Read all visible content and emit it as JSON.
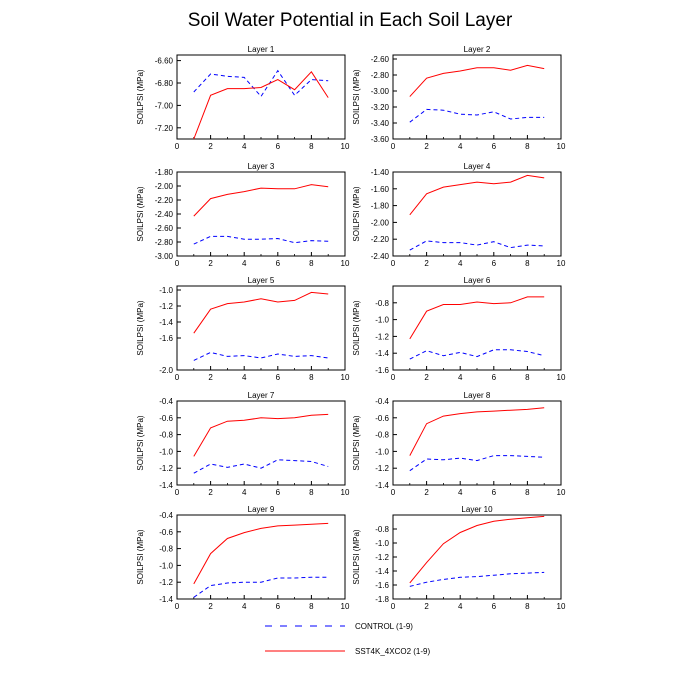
{
  "title": "Soil Water Potential in Each Soil Layer",
  "legend": [
    {
      "label": "CONTROL (1-9)",
      "color": "#0000ff",
      "style": "dashed"
    },
    {
      "label": "SST4K_4XCO2 (1-9)",
      "color": "#ff0000",
      "style": "solid"
    }
  ],
  "chart_data": [
    {
      "type": "line",
      "title": "Layer 1",
      "ylabel": "SOILPSI  (MPa)",
      "xlim": [
        0,
        10
      ],
      "ylim": [
        -7.3,
        -6.55
      ],
      "xticks": [
        0,
        2,
        4,
        6,
        8,
        10
      ],
      "yticks": [
        -7.2,
        -7.0,
        -6.8,
        -6.6
      ],
      "ytick_labels": [
        "-7.20",
        "-7.00",
        "-6.80",
        "-6.60"
      ],
      "x": [
        1,
        2,
        3,
        4,
        5,
        6,
        7,
        8,
        9
      ],
      "series": [
        {
          "name": "CONTROL (1-9)",
          "values": [
            -6.88,
            -6.72,
            -6.74,
            -6.75,
            -6.92,
            -6.69,
            -6.91,
            -6.77,
            -6.78
          ]
        },
        {
          "name": "SST4K_4XCO2 (1-9)",
          "values": [
            -7.3,
            -6.91,
            -6.85,
            -6.85,
            -6.84,
            -6.77,
            -6.86,
            -6.7,
            -6.93
          ]
        }
      ]
    },
    {
      "type": "line",
      "title": "Layer 2",
      "ylabel": "SOILPSI  (MPa)",
      "xlim": [
        0,
        10
      ],
      "ylim": [
        -3.6,
        -2.55
      ],
      "xticks": [
        0,
        2,
        4,
        6,
        8,
        10
      ],
      "yticks": [
        -3.6,
        -3.4,
        -3.2,
        -3.0,
        -2.8,
        -2.6
      ],
      "ytick_labels": [
        "-3.60",
        "-3.40",
        "-3.20",
        "-3.00",
        "-2.80",
        "-2.60"
      ],
      "x": [
        1,
        2,
        3,
        4,
        5,
        6,
        7,
        8,
        9
      ],
      "series": [
        {
          "name": "CONTROL (1-9)",
          "values": [
            -3.39,
            -3.23,
            -3.24,
            -3.29,
            -3.3,
            -3.26,
            -3.35,
            -3.33,
            -3.33
          ]
        },
        {
          "name": "SST4K_4XCO2 (1-9)",
          "values": [
            -3.07,
            -2.84,
            -2.78,
            -2.75,
            -2.71,
            -2.71,
            -2.74,
            -2.68,
            -2.72
          ]
        }
      ]
    },
    {
      "type": "line",
      "title": "Layer 3",
      "ylabel": "SOILPSI  (MPa)",
      "xlim": [
        0,
        10
      ],
      "ylim": [
        -3.0,
        -1.8
      ],
      "xticks": [
        0,
        2,
        4,
        6,
        8,
        10
      ],
      "yticks": [
        -3.0,
        -2.8,
        -2.6,
        -2.4,
        -2.2,
        -2.0,
        -1.8
      ],
      "ytick_labels": [
        "-3.00",
        "-2.80",
        "-2.60",
        "-2.40",
        "-2.20",
        "-2.00",
        "-1.80"
      ],
      "x": [
        1,
        2,
        3,
        4,
        5,
        6,
        7,
        8,
        9
      ],
      "series": [
        {
          "name": "CONTROL (1-9)",
          "values": [
            -2.83,
            -2.72,
            -2.72,
            -2.76,
            -2.76,
            -2.75,
            -2.81,
            -2.78,
            -2.79
          ]
        },
        {
          "name": "SST4K_4XCO2 (1-9)",
          "values": [
            -2.43,
            -2.18,
            -2.12,
            -2.08,
            -2.03,
            -2.04,
            -2.04,
            -1.98,
            -2.01
          ]
        }
      ]
    },
    {
      "type": "line",
      "title": "Layer 4",
      "ylabel": "SOILPSI  (MPa)",
      "xlim": [
        0,
        10
      ],
      "ylim": [
        -2.4,
        -1.4
      ],
      "xticks": [
        0,
        2,
        4,
        6,
        8,
        10
      ],
      "yticks": [
        -2.4,
        -2.2,
        -2.0,
        -1.8,
        -1.6,
        -1.4
      ],
      "ytick_labels": [
        "-2.40",
        "-2.20",
        "-2.00",
        "-1.80",
        "-1.60",
        "-1.40"
      ],
      "x": [
        1,
        2,
        3,
        4,
        5,
        6,
        7,
        8,
        9
      ],
      "series": [
        {
          "name": "CONTROL (1-9)",
          "values": [
            -2.33,
            -2.22,
            -2.24,
            -2.24,
            -2.27,
            -2.23,
            -2.3,
            -2.27,
            -2.28
          ]
        },
        {
          "name": "SST4K_4XCO2 (1-9)",
          "values": [
            -1.91,
            -1.66,
            -1.58,
            -1.55,
            -1.52,
            -1.54,
            -1.52,
            -1.44,
            -1.47
          ]
        }
      ]
    },
    {
      "type": "line",
      "title": "Layer 5",
      "ylabel": "SOILPSI  (MPa)",
      "xlim": [
        0,
        10
      ],
      "ylim": [
        -2.0,
        -0.95
      ],
      "xticks": [
        0,
        2,
        4,
        6,
        8,
        10
      ],
      "yticks": [
        -2.0,
        -1.6,
        -1.4,
        -1.2,
        -1.0
      ],
      "ytick_labels": [
        "-2.0",
        "-1.6",
        "-1.4",
        "-1.2",
        "-1.0"
      ],
      "x": [
        1,
        2,
        3,
        4,
        5,
        6,
        7,
        8,
        9
      ],
      "series": [
        {
          "name": "CONTROL (1-9)",
          "values": [
            -1.88,
            -1.78,
            -1.83,
            -1.82,
            -1.85,
            -1.8,
            -1.83,
            -1.82,
            -1.85
          ]
        },
        {
          "name": "SST4K_4XCO2 (1-9)",
          "values": [
            -1.54,
            -1.24,
            -1.17,
            -1.15,
            -1.11,
            -1.15,
            -1.13,
            -1.03,
            -1.05
          ]
        }
      ]
    },
    {
      "type": "line",
      "title": "Layer 6",
      "ylabel": "SOILPSI  (MPa)",
      "xlim": [
        0,
        10
      ],
      "ylim": [
        -1.6,
        -0.6
      ],
      "xticks": [
        0,
        2,
        4,
        6,
        8,
        10
      ],
      "yticks": [
        -1.6,
        -1.4,
        -1.2,
        -1.0,
        -0.8
      ],
      "ytick_labels": [
        "-1.6",
        "-1.4",
        "-1.2",
        "-1.0",
        "-0.8"
      ],
      "x": [
        1,
        2,
        3,
        4,
        5,
        6,
        7,
        8,
        9
      ],
      "series": [
        {
          "name": "CONTROL (1-9)",
          "values": [
            -1.47,
            -1.37,
            -1.43,
            -1.39,
            -1.44,
            -1.36,
            -1.36,
            -1.38,
            -1.43
          ]
        },
        {
          "name": "SST4K_4XCO2 (1-9)",
          "values": [
            -1.23,
            -0.9,
            -0.82,
            -0.82,
            -0.79,
            -0.81,
            -0.8,
            -0.73,
            -0.73
          ]
        }
      ]
    },
    {
      "type": "line",
      "title": "Layer 7",
      "ylabel": "SOILPSI  (MPa)",
      "xlim": [
        0,
        10
      ],
      "ylim": [
        -1.4,
        -0.4
      ],
      "xticks": [
        0,
        2,
        4,
        6,
        8,
        10
      ],
      "yticks": [
        -1.4,
        -1.2,
        -1.0,
        -0.8,
        -0.6,
        -0.4
      ],
      "ytick_labels": [
        "-1.4",
        "-1.2",
        "-1.0",
        "-0.8",
        "-0.6",
        "-0.4"
      ],
      "x": [
        1,
        2,
        3,
        4,
        5,
        6,
        7,
        8,
        9
      ],
      "series": [
        {
          "name": "CONTROL (1-9)",
          "values": [
            -1.26,
            -1.15,
            -1.19,
            -1.15,
            -1.2,
            -1.1,
            -1.11,
            -1.12,
            -1.18
          ]
        },
        {
          "name": "SST4K_4XCO2 (1-9)",
          "values": [
            -1.06,
            -0.72,
            -0.64,
            -0.63,
            -0.6,
            -0.61,
            -0.6,
            -0.57,
            -0.56
          ]
        }
      ]
    },
    {
      "type": "line",
      "title": "Layer 8",
      "ylabel": "SOILPSI  (MPa)",
      "xlim": [
        0,
        10
      ],
      "ylim": [
        -1.4,
        -0.4
      ],
      "xticks": [
        0,
        2,
        4,
        6,
        8,
        10
      ],
      "yticks": [
        -1.4,
        -1.2,
        -1.0,
        -0.8,
        -0.6,
        -0.4
      ],
      "ytick_labels": [
        "-1.4",
        "-1.2",
        "-1.0",
        "-0.8",
        "-0.6",
        "-0.4"
      ],
      "x": [
        1,
        2,
        3,
        4,
        5,
        6,
        7,
        8,
        9
      ],
      "series": [
        {
          "name": "CONTROL (1-9)",
          "values": [
            -1.23,
            -1.09,
            -1.1,
            -1.08,
            -1.11,
            -1.05,
            -1.05,
            -1.06,
            -1.07
          ]
        },
        {
          "name": "SST4K_4XCO2 (1-9)",
          "values": [
            -1.05,
            -0.67,
            -0.58,
            -0.55,
            -0.53,
            -0.52,
            -0.51,
            -0.5,
            -0.48
          ]
        }
      ]
    },
    {
      "type": "line",
      "title": "Layer 9",
      "ylabel": "SOILPSI  (MPa)",
      "xlim": [
        0,
        10
      ],
      "ylim": [
        -1.4,
        -0.4
      ],
      "xticks": [
        0,
        2,
        4,
        6,
        8,
        10
      ],
      "yticks": [
        -1.4,
        -1.2,
        -1.0,
        -0.8,
        -0.6,
        -0.4
      ],
      "ytick_labels": [
        "-1.4",
        "-1.2",
        "-1.0",
        "-0.8",
        "-0.6",
        "-0.4"
      ],
      "x": [
        1,
        2,
        3,
        4,
        5,
        6,
        7,
        8,
        9
      ],
      "series": [
        {
          "name": "CONTROL (1-9)",
          "values": [
            -1.38,
            -1.24,
            -1.21,
            -1.2,
            -1.2,
            -1.15,
            -1.15,
            -1.14,
            -1.14
          ]
        },
        {
          "name": "SST4K_4XCO2 (1-9)",
          "values": [
            -1.22,
            -0.86,
            -0.68,
            -0.61,
            -0.56,
            -0.53,
            -0.52,
            -0.51,
            -0.5
          ]
        }
      ]
    },
    {
      "type": "line",
      "title": "Layer 10",
      "ylabel": "SOILPSI  (MPa)",
      "xlim": [
        0,
        10
      ],
      "ylim": [
        -1.8,
        -0.6
      ],
      "xticks": [
        0,
        2,
        4,
        6,
        8,
        10
      ],
      "yticks": [
        -1.8,
        -1.6,
        -1.4,
        -1.2,
        -1.0,
        -0.8
      ],
      "ytick_labels": [
        "-1.8",
        "-1.6",
        "-1.4",
        "-1.2",
        "-1.0",
        "-0.8"
      ],
      "x": [
        1,
        2,
        3,
        4,
        5,
        6,
        7,
        8,
        9
      ],
      "series": [
        {
          "name": "CONTROL (1-9)",
          "values": [
            -1.62,
            -1.56,
            -1.52,
            -1.49,
            -1.48,
            -1.46,
            -1.44,
            -1.43,
            -1.42
          ]
        },
        {
          "name": "SST4K_4XCO2 (1-9)",
          "values": [
            -1.57,
            -1.28,
            -1.01,
            -0.85,
            -0.75,
            -0.69,
            -0.66,
            -0.64,
            -0.62
          ]
        }
      ]
    }
  ]
}
